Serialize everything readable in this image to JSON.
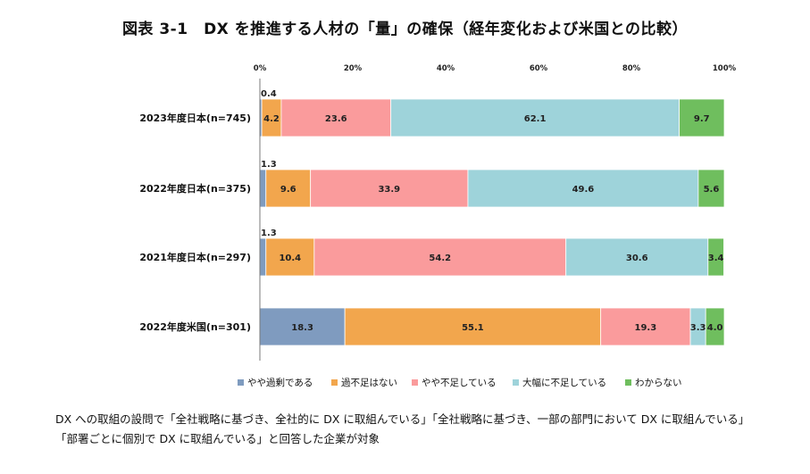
{
  "title": "図表 3-1　DX を推進する人材の「量」の確保（経年変化および米国との比較）",
  "chart_data": {
    "type": "bar",
    "orientation": "horizontal",
    "stacked": "percent",
    "xlim": [
      0,
      100
    ],
    "x_ticks": [
      "0%",
      "20%",
      "40%",
      "60%",
      "80%",
      "100%"
    ],
    "x_tick_values": [
      0,
      20,
      40,
      60,
      80,
      100
    ],
    "categories": [
      "2023年度日本(n=745)",
      "2022年度日本(n=375)",
      "2021年度日本(n=297)",
      "2022年度米国(n=301)"
    ],
    "series": [
      {
        "name": "やや過剰である",
        "color": "#7f9bbf",
        "values": [
          0.4,
          1.3,
          1.3,
          18.3
        ],
        "labels": [
          "0.4",
          "1.3",
          "1.3",
          "18.3"
        ]
      },
      {
        "name": "過不足はない",
        "color": "#f2a64d",
        "values": [
          4.2,
          9.6,
          10.4,
          55.1
        ],
        "labels": [
          "4.2",
          "9.6",
          "10.4",
          "55.1"
        ]
      },
      {
        "name": "やや不足している",
        "color": "#fa9b9c",
        "values": [
          23.6,
          33.9,
          54.2,
          19.3
        ],
        "labels": [
          "23.6",
          "33.9",
          "54.2",
          "19.3"
        ]
      },
      {
        "name": "大幅に不足している",
        "color": "#9ed3da",
        "values": [
          62.1,
          49.6,
          30.6,
          3.3
        ],
        "labels": [
          "62.1",
          "49.6",
          "30.6",
          "3.3"
        ]
      },
      {
        "name": "わからない",
        "color": "#6fbe5e",
        "values": [
          9.7,
          5.6,
          3.4,
          4.0
        ],
        "labels": [
          "9.7",
          "5.6",
          "3.4",
          "4.0"
        ]
      }
    ],
    "legend_position": "bottom",
    "grid": false
  },
  "note": {
    "line1": "DX への取組の設問で「全社戦略に基づき、全社的に DX に取組んでいる」「全社戦略に基づき、一部の部門において DX に取組んでいる」",
    "line2": "「部署ごとに個別で DX に取組んでいる」と回答した企業が対象"
  }
}
